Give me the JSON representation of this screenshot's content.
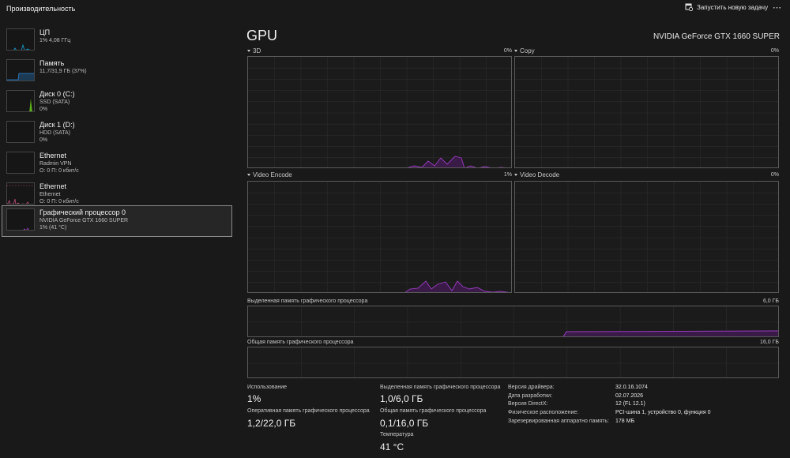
{
  "header": {
    "title": "Производительность",
    "run_task_label": "Запустить новую задачу",
    "more_label": "⋯"
  },
  "sidebar": {
    "items": [
      {
        "name": "ЦП",
        "line1": "1% 4,08 ГГц",
        "line2": "",
        "color": "#17a0d6"
      },
      {
        "name": "Память",
        "line1": "11,7/31,9 ГБ (37%)",
        "line2": "",
        "color": "#2f86d6"
      },
      {
        "name": "Диск 0 (C:)",
        "line1": "SSD (SATA)",
        "line2": "0%",
        "color": "#5fb31a"
      },
      {
        "name": "Диск 1 (D:)",
        "line1": "HDD (SATA)",
        "line2": "0%",
        "color": "#5fb31a"
      },
      {
        "name": "Ethernet",
        "line1": "Radmin VPN",
        "line2": "О: 0 П: 0 кбит/с",
        "color": "#c24d7a"
      },
      {
        "name": "Ethernet",
        "line1": "Ethernet",
        "line2": "О: 0 П: 0 кбит/с",
        "color": "#c24d7a"
      },
      {
        "name": "Графический процессор 0",
        "line1": "NVIDIA GeForce GTX 1660 SUPER",
        "line2": "1% (41 °C)",
        "color": "#9a3cc0"
      }
    ]
  },
  "main": {
    "title": "GPU",
    "model": "NVIDIA GeForce GTX 1660 SUPER",
    "accent_color": "#9a3cc0",
    "graphs": [
      {
        "label": "3D",
        "value": "0%"
      },
      {
        "label": "Copy",
        "value": "0%"
      },
      {
        "label": "Video Encode",
        "value": "1%"
      },
      {
        "label": "Video Decode",
        "value": "0%"
      }
    ],
    "dedicated_memory": {
      "label": "Выделенная память графического процессора",
      "max": "6,0 ГБ"
    },
    "shared_memory": {
      "label": "Общая память графического процессора",
      "max": "16,0 ГБ"
    }
  },
  "stats": {
    "usage_label": "Использование",
    "usage_value": "1%",
    "gpu_ram_label": "Оперативная память графического процессора",
    "gpu_ram_value": "1,2/22,0 ГБ",
    "dedicated_label": "Выделенная память графического процессора",
    "dedicated_value": "1,0/6,0 ГБ",
    "shared_label": "Общая память графического процессора",
    "shared_value": "0,1/16,0 ГБ",
    "temp_label": "Температура",
    "temp_value": "41 °C"
  },
  "info": [
    {
      "key": "Версия драйвера:",
      "value": "32.0.16.1074"
    },
    {
      "key": "Дата разработки:",
      "value": "02.07.2026"
    },
    {
      "key": "Версия DirectX:",
      "value": "12 (FL 12.1)"
    },
    {
      "key": "Физическое расположение:",
      "value": "PCI-шина 1, устройство 0, функция 0"
    },
    {
      "key": "Зарезервированная аппаратно память:",
      "value": "178 МБ"
    }
  ]
}
